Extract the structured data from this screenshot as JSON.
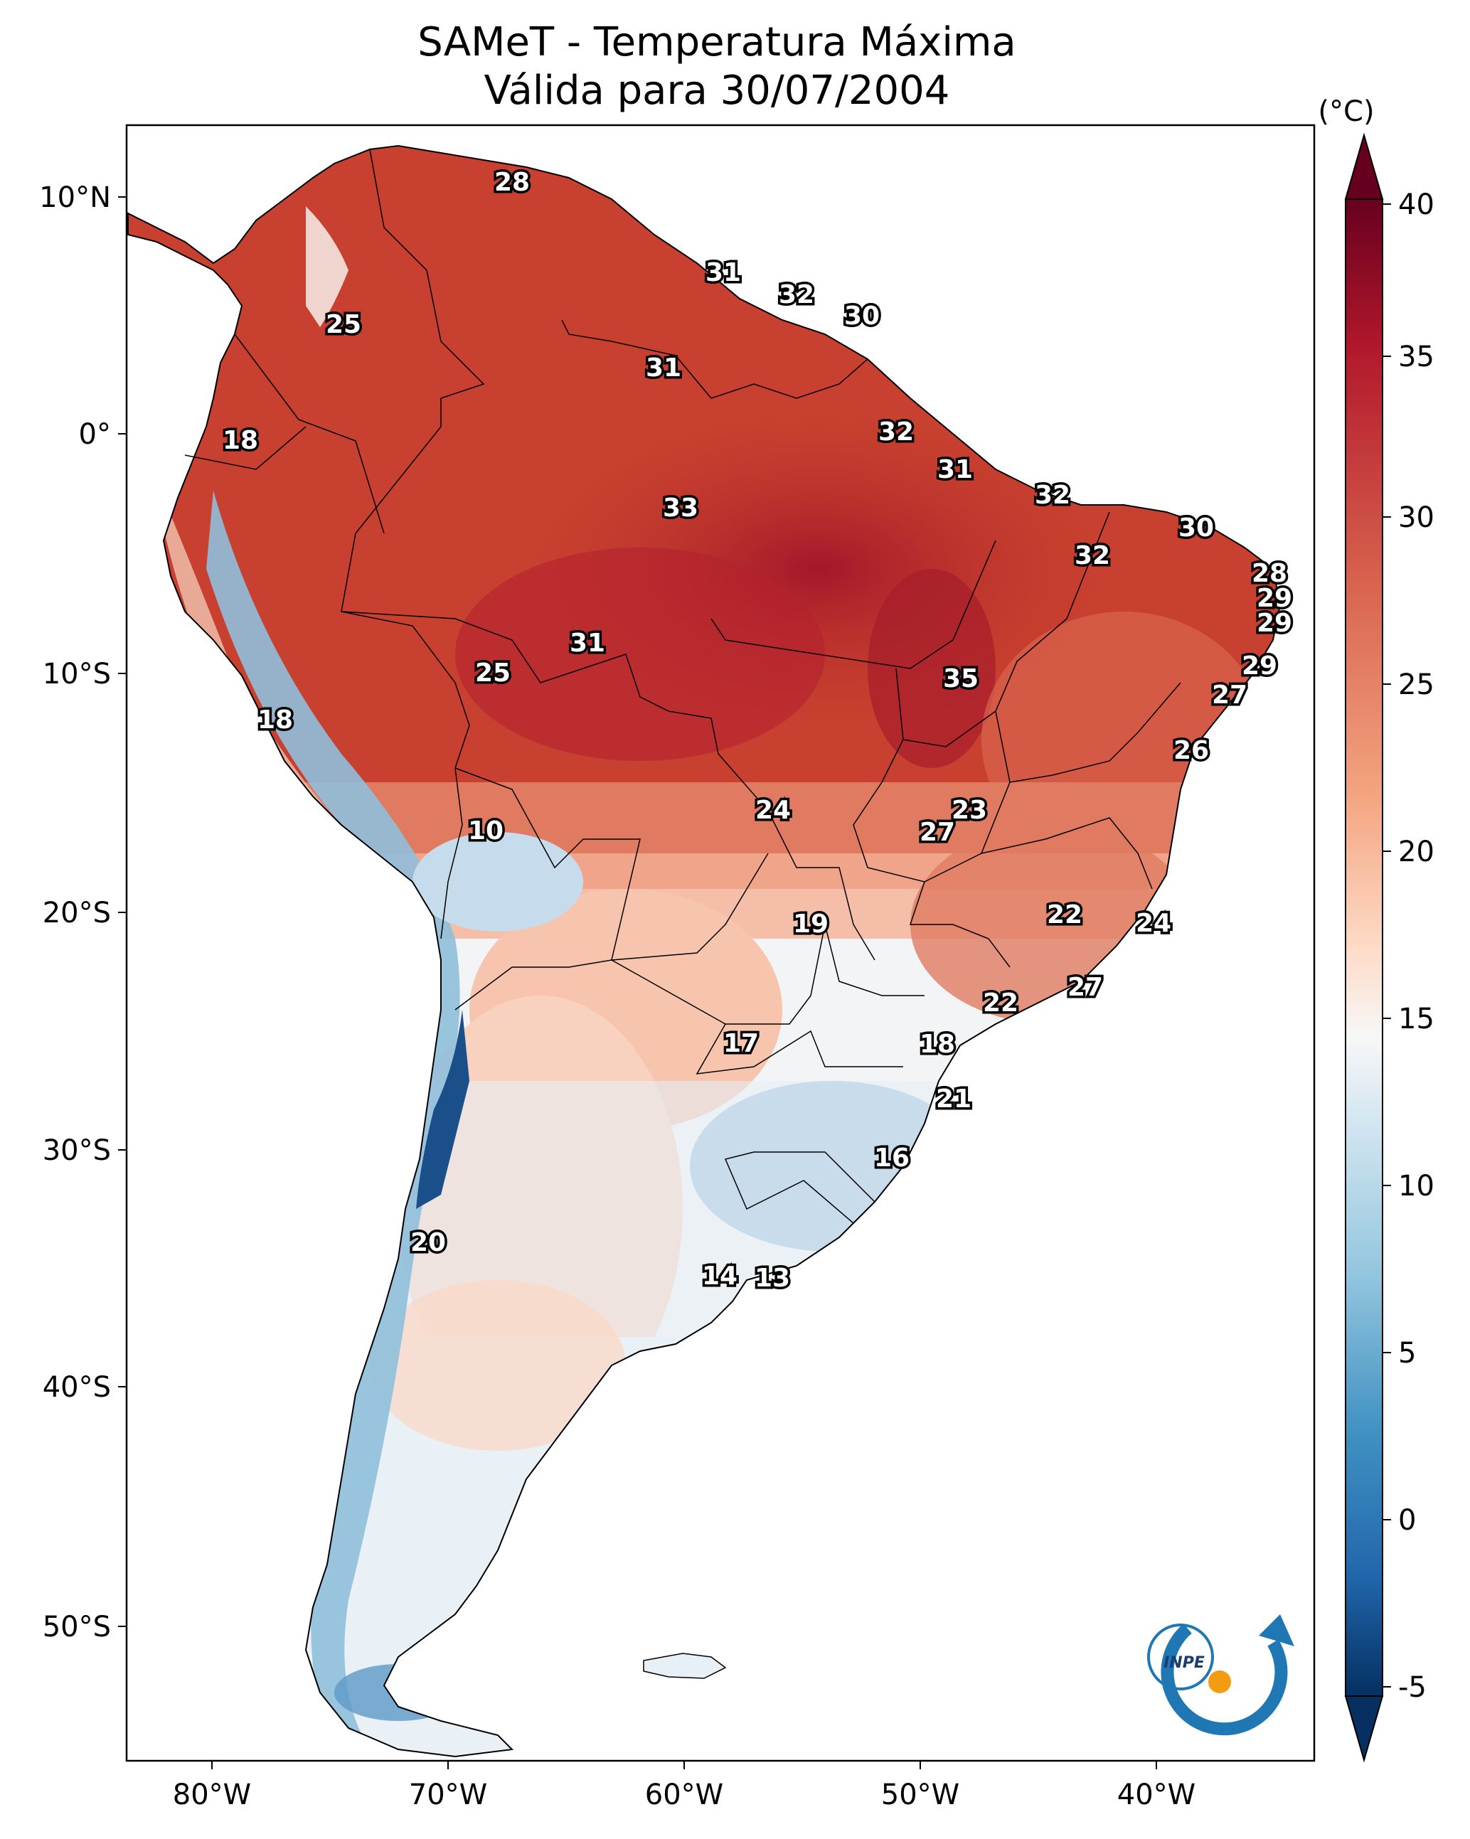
{
  "title": {
    "line1": "SAMeT - Temperatura Máxima",
    "line2": "Válida para 30/07/2004"
  },
  "axes": {
    "lon_ticks": [
      "80°W",
      "70°W",
      "60°W",
      "50°W",
      "40°W"
    ],
    "lat_ticks": [
      "10°N",
      "0°",
      "10°S",
      "20°S",
      "30°S",
      "40°S",
      "50°S"
    ]
  },
  "colorbar": {
    "unit": "(°C)",
    "ticks": [
      "40",
      "35",
      "30",
      "25",
      "20",
      "15",
      "10",
      "5",
      "0",
      "-5"
    ],
    "colors": [
      "#67001f",
      "#b2182b",
      "#d6604d",
      "#f4a582",
      "#fddbc7",
      "#f7f7f7",
      "#d1e5f0",
      "#92c5de",
      "#4393c3",
      "#2166ac",
      "#053061"
    ]
  },
  "labels": [
    {
      "text": "28"
    },
    {
      "text": "25"
    },
    {
      "text": "31"
    },
    {
      "text": "32"
    },
    {
      "text": "30"
    },
    {
      "text": "31"
    },
    {
      "text": "18"
    },
    {
      "text": "32"
    },
    {
      "text": "31"
    },
    {
      "text": "33"
    },
    {
      "text": "32"
    },
    {
      "text": "30"
    },
    {
      "text": "32"
    },
    {
      "text": "28"
    },
    {
      "text": "29"
    },
    {
      "text": "29"
    },
    {
      "text": "31"
    },
    {
      "text": "25"
    },
    {
      "text": "35"
    },
    {
      "text": "29"
    },
    {
      "text": "27"
    },
    {
      "text": "18"
    },
    {
      "text": "26"
    },
    {
      "text": "24"
    },
    {
      "text": "23"
    },
    {
      "text": "27"
    },
    {
      "text": "10"
    },
    {
      "text": "19"
    },
    {
      "text": "22"
    },
    {
      "text": "24"
    },
    {
      "text": "27"
    },
    {
      "text": "22"
    },
    {
      "text": "17"
    },
    {
      "text": "18"
    },
    {
      "text": "21"
    },
    {
      "text": "16"
    },
    {
      "text": "20"
    },
    {
      "text": "14"
    },
    {
      "text": "13"
    }
  ],
  "logo": {
    "text": "INPE"
  }
}
